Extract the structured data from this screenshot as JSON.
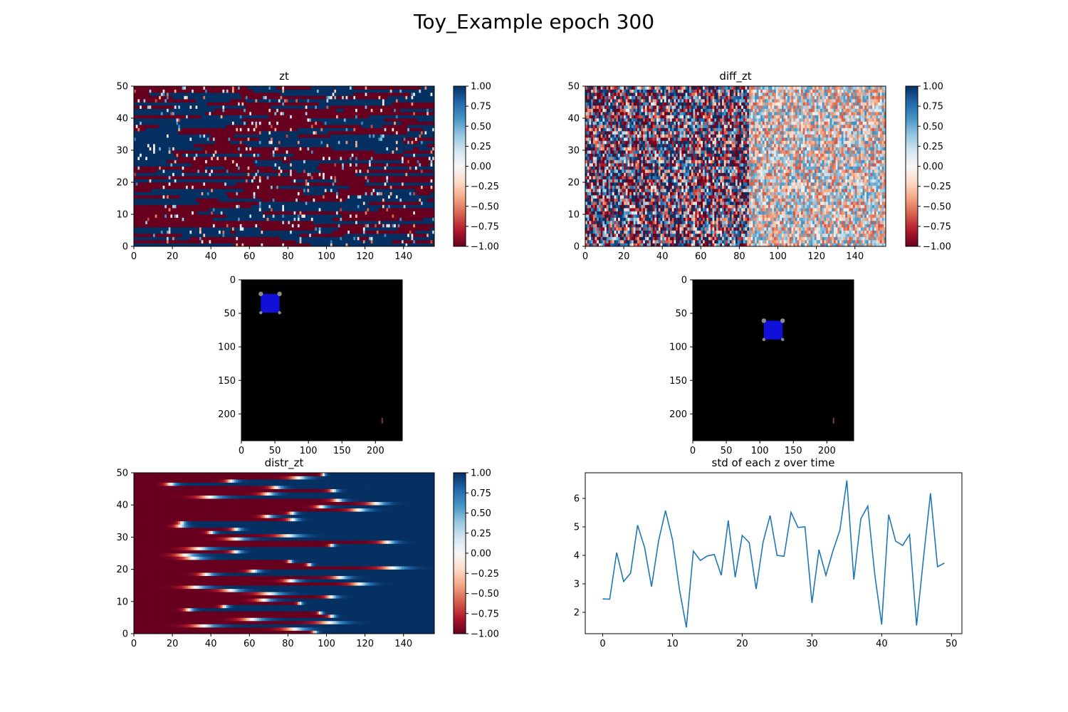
{
  "figure": {
    "suptitle": "Toy_Example epoch 300"
  },
  "colors": {
    "cmap_rdbu": [
      "#67001f",
      "#b2182b",
      "#d6604d",
      "#f4a582",
      "#fddbc7",
      "#f7f7f7",
      "#d1e5f0",
      "#92c5de",
      "#4393c3",
      "#2166ac",
      "#053061"
    ],
    "line": "#1f77b4",
    "image_background": "#000000",
    "square": "#1010d8"
  },
  "chart_data": [
    {
      "id": "zt",
      "type": "heatmap",
      "title": "zt",
      "xlim": [
        0,
        156
      ],
      "ylim": [
        0,
        50
      ],
      "xticks": [
        0,
        20,
        40,
        60,
        80,
        100,
        120,
        140
      ],
      "yticks": [
        0,
        10,
        20,
        30,
        40,
        50
      ],
      "colorbar": {
        "range": [
          -1.0,
          1.0
        ],
        "ticks": [
          "1.00",
          "0.75",
          "0.50",
          "0.25",
          "0.00",
          "−0.25",
          "−0.50",
          "−0.75",
          "−1.00"
        ]
      },
      "pattern": "mostly saturated ±1 horizontal streaks, rows switch sign occasionally"
    },
    {
      "id": "diff_zt",
      "type": "heatmap",
      "title": "diff_zt",
      "xlim": [
        0,
        156
      ],
      "ylim": [
        0,
        50
      ],
      "xticks": [
        0,
        20,
        40,
        60,
        80,
        100,
        120,
        140
      ],
      "yticks": [
        0,
        10,
        20,
        30,
        40,
        50
      ],
      "colorbar": {
        "range": [
          -1.0,
          1.0
        ],
        "ticks": [
          "1.00",
          "0.75",
          "0.50",
          "0.25",
          "0.00",
          "−0.25",
          "−0.50",
          "−0.75",
          "−1.00"
        ]
      },
      "pattern": "noisy mixed values, strong in columns 0–85, weaker afterwards"
    },
    {
      "id": "frame_left",
      "type": "image",
      "xlim": [
        0,
        240
      ],
      "ylim": [
        240,
        0
      ],
      "xticks": [
        0,
        50,
        100,
        150,
        200
      ],
      "yticks": [
        0,
        50,
        100,
        150,
        200
      ],
      "square_center": [
        43,
        35
      ],
      "square_size": 28,
      "marker": [
        210,
        210
      ]
    },
    {
      "id": "frame_right",
      "type": "image",
      "xlim": [
        0,
        240
      ],
      "ylim": [
        240,
        0
      ],
      "xticks": [
        0,
        50,
        100,
        150,
        200
      ],
      "yticks": [
        0,
        50,
        100,
        150,
        200
      ],
      "square_center": [
        120,
        75
      ],
      "square_size": 28,
      "marker": [
        210,
        210
      ]
    },
    {
      "id": "distr_zt",
      "type": "heatmap",
      "title": "distr_zt",
      "xlim": [
        0,
        156
      ],
      "ylim": [
        0,
        50
      ],
      "xticks": [
        0,
        20,
        40,
        60,
        80,
        100,
        120,
        140
      ],
      "yticks": [
        0,
        10,
        20,
        30,
        40,
        50
      ],
      "colorbar": {
        "range": [
          -1.0,
          1.0
        ],
        "ticks": [
          "1.00",
          "0.75",
          "0.50",
          "0.25",
          "0.00",
          "−0.25",
          "−0.50",
          "−0.75",
          "−1.00"
        ]
      },
      "pattern": "each row red (−1) until a transition point then blue (+1)"
    },
    {
      "id": "std",
      "type": "line",
      "title": "std of each z over time",
      "xlim": [
        -2.5,
        51.5
      ],
      "ylim": [
        1.25,
        6.9
      ],
      "xticks": [
        0,
        10,
        20,
        30,
        40,
        50
      ],
      "yticks": [
        2,
        3,
        4,
        5,
        6
      ],
      "x": [
        0,
        1,
        2,
        3,
        4,
        5,
        6,
        7,
        8,
        9,
        10,
        11,
        12,
        13,
        14,
        15,
        16,
        17,
        18,
        19,
        20,
        21,
        22,
        23,
        24,
        25,
        26,
        27,
        28,
        29,
        30,
        31,
        32,
        33,
        34,
        35,
        36,
        37,
        38,
        39,
        40,
        41,
        42,
        43,
        44,
        45,
        46,
        47,
        48,
        49
      ],
      "y": [
        2.47,
        2.46,
        4.1,
        3.08,
        3.38,
        5.06,
        4.28,
        2.9,
        4.5,
        5.57,
        4.55,
        2.8,
        1.47,
        4.15,
        3.82,
        3.98,
        4.03,
        3.3,
        5.23,
        3.23,
        4.7,
        4.45,
        2.82,
        4.47,
        5.4,
        4.0,
        3.97,
        5.51,
        4.98,
        5.0,
        2.33,
        4.2,
        3.3,
        4.15,
        4.88,
        6.63,
        3.15,
        5.28,
        5.73,
        3.35,
        1.57,
        5.43,
        4.5,
        4.35,
        4.73,
        1.54,
        3.92,
        6.18,
        3.6,
        3.73
      ]
    }
  ]
}
